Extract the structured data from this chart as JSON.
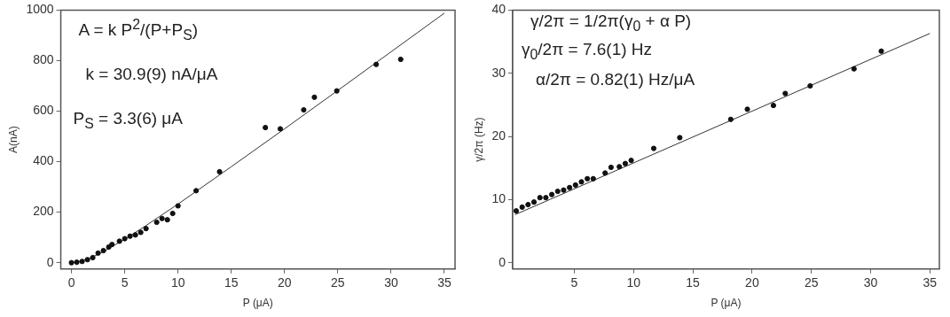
{
  "chart_data": [
    {
      "type": "scatter",
      "xlabel": "P (μA)",
      "ylabel": "A(nA)",
      "xlim": [
        -1,
        36
      ],
      "ylim": [
        -25,
        1000
      ],
      "xticks": [
        0,
        5,
        10,
        15,
        20,
        25,
        30,
        35
      ],
      "yticks": [
        0,
        200,
        400,
        600,
        800,
        1000
      ],
      "grid": false,
      "legend": false,
      "annotations": [
        "A = k P$^{2}$/(P+P$_{S}$)",
        "k = 30.9(9) nA/μA",
        "P$_{S}$ = 3.3(6) μA"
      ],
      "series": [
        {
          "type": "scatter",
          "color": "#111111",
          "marker": "circle",
          "x": [
            0,
            0.5,
            1,
            1.5,
            2,
            2.5,
            3,
            3.5,
            3.8,
            4.5,
            5,
            5.5,
            6,
            6.5,
            7,
            8,
            8.5,
            9,
            9.5,
            10,
            11.7,
            13.9,
            18.2,
            19.6,
            21.8,
            22.8,
            24.9,
            28.6,
            30.9
          ],
          "values": [
            0,
            2,
            5,
            12,
            20,
            38,
            48,
            62,
            72,
            85,
            95,
            105,
            110,
            120,
            135,
            160,
            175,
            170,
            195,
            225,
            285,
            360,
            535,
            530,
            605,
            655,
            680,
            785,
            805
          ]
        },
        {
          "type": "line",
          "color": "#333333",
          "marker": "none",
          "x": [
            0,
            1,
            2,
            3,
            5,
            7,
            10,
            15,
            20,
            25,
            30,
            35
          ],
          "values": [
            0,
            7,
            23,
            44,
            93,
            147,
            232,
            380,
            530,
            682,
            835,
            988
          ]
        }
      ]
    },
    {
      "type": "scatter",
      "xlabel": "P (μA)",
      "ylabel": "γ/2π (Hz)",
      "xlim": [
        -0.2,
        35.8
      ],
      "ylim": [
        -1,
        40
      ],
      "xticks": [
        5,
        10,
        15,
        20,
        25,
        30,
        35
      ],
      "yticks": [
        0,
        10,
        20,
        30,
        40
      ],
      "grid": false,
      "legend": false,
      "annotations": [
        "γ/2π = 1/2π(γ$_{0}$ + α P)",
        "γ$_{0}$/2π = 7.6(1) Hz",
        "α/2π = 0.82(1) Hz/μA"
      ],
      "series": [
        {
          "type": "scatter",
          "color": "#111111",
          "marker": "circle",
          "x": [
            0.1,
            0.6,
            1.1,
            1.6,
            2.1,
            2.6,
            3.1,
            3.6,
            4.1,
            4.6,
            5.1,
            5.6,
            6.1,
            6.6,
            7.6,
            8.1,
            8.8,
            9.3,
            9.8,
            11.7,
            13.9,
            18.2,
            19.6,
            21.8,
            22.8,
            24.9,
            28.6,
            30.9
          ],
          "values": [
            8.2,
            8.8,
            9.2,
            9.6,
            10.3,
            10.3,
            10.8,
            11.3,
            11.5,
            11.9,
            12.3,
            12.8,
            13.3,
            13.3,
            14.2,
            15.1,
            15.2,
            15.7,
            16.2,
            18.1,
            19.8,
            22.7,
            24.3,
            24.9,
            26.8,
            28,
            30.7,
            33.5
          ]
        },
        {
          "type": "line",
          "color": "#333333",
          "marker": "none",
          "x": [
            0,
            35
          ],
          "values": [
            7.6,
            36.3
          ]
        }
      ]
    }
  ]
}
